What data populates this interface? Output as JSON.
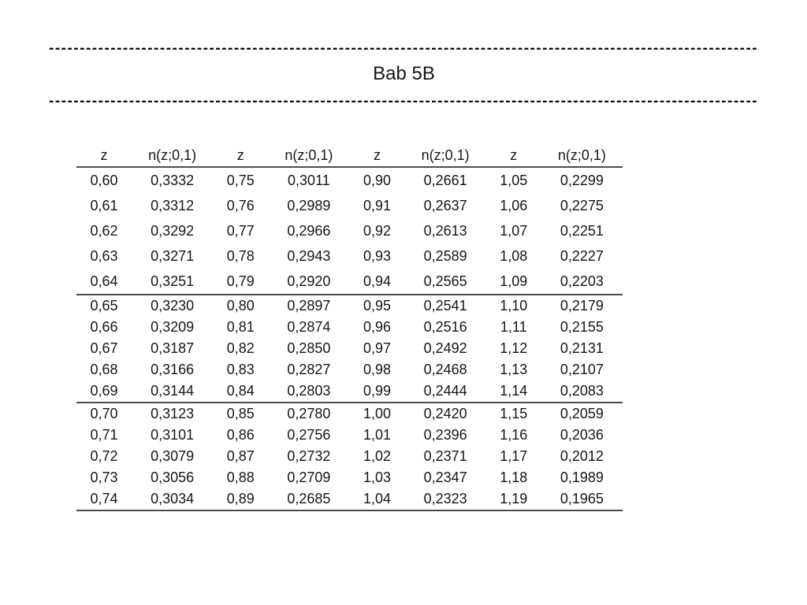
{
  "page": {
    "title": "Bab 5B"
  },
  "dividers": {
    "dash_line": "------------------------------------------------------------------------------------------------------------------------"
  },
  "table": {
    "headers": [
      "z",
      "n(z;0,1)",
      "z",
      "n(z;0,1)",
      "z",
      "n(z;0,1)",
      "z",
      "n(z;0,1)"
    ],
    "groups": [
      [
        [
          "0,60",
          "0,3332",
          "0,75",
          "0,3011",
          "0,90",
          "0,2661",
          "1,05",
          "0,2299"
        ],
        [
          "0,61",
          "0,3312",
          "0,76",
          "0,2989",
          "0,91",
          "0,2637",
          "1,06",
          "0,2275"
        ],
        [
          "0,62",
          "0,3292",
          "0,77",
          "0,2966",
          "0,92",
          "0,2613",
          "1,07",
          "0,2251"
        ],
        [
          "0,63",
          "0,3271",
          "0,78",
          "0,2943",
          "0,93",
          "0,2589",
          "1,08",
          "0,2227"
        ],
        [
          "0,64",
          "0,3251",
          "0,79",
          "0,2920",
          "0,94",
          "0,2565",
          "1,09",
          "0,2203"
        ]
      ],
      [
        [
          "0,65",
          "0,3230",
          "0,80",
          "0,2897",
          "0,95",
          "0,2541",
          "1,10",
          "0,2179"
        ],
        [
          "0,66",
          "0,3209",
          "0,81",
          "0,2874",
          "0,96",
          "0,2516",
          "1,11",
          "0,2155"
        ],
        [
          "0,67",
          "0,3187",
          "0,82",
          "0,2850",
          "0,97",
          "0,2492",
          "1,12",
          "0,2131"
        ],
        [
          "0,68",
          "0,3166",
          "0,83",
          "0,2827",
          "0,98",
          "0,2468",
          "1,13",
          "0,2107"
        ],
        [
          "0,69",
          "0,3144",
          "0,84",
          "0,2803",
          "0,99",
          "0,2444",
          "1,14",
          "0,2083"
        ]
      ],
      [
        [
          "0,70",
          "0,3123",
          "0,85",
          "0,2780",
          "1,00",
          "0,2420",
          "1,15",
          "0,2059"
        ],
        [
          "0,71",
          "0,3101",
          "0,86",
          "0,2756",
          "1,01",
          "0,2396",
          "1,16",
          "0,2036"
        ],
        [
          "0,72",
          "0,3079",
          "0,87",
          "0,2732",
          "1,02",
          "0,2371",
          "1,17",
          "0,2012"
        ],
        [
          "0,73",
          "0,3056",
          "0,88",
          "0,2709",
          "1,03",
          "0,2347",
          "1,18",
          "0,1989"
        ],
        [
          "0,74",
          "0,3034",
          "0,89",
          "0,2685",
          "1,04",
          "0,2323",
          "1,19",
          "0,1965"
        ]
      ]
    ]
  }
}
